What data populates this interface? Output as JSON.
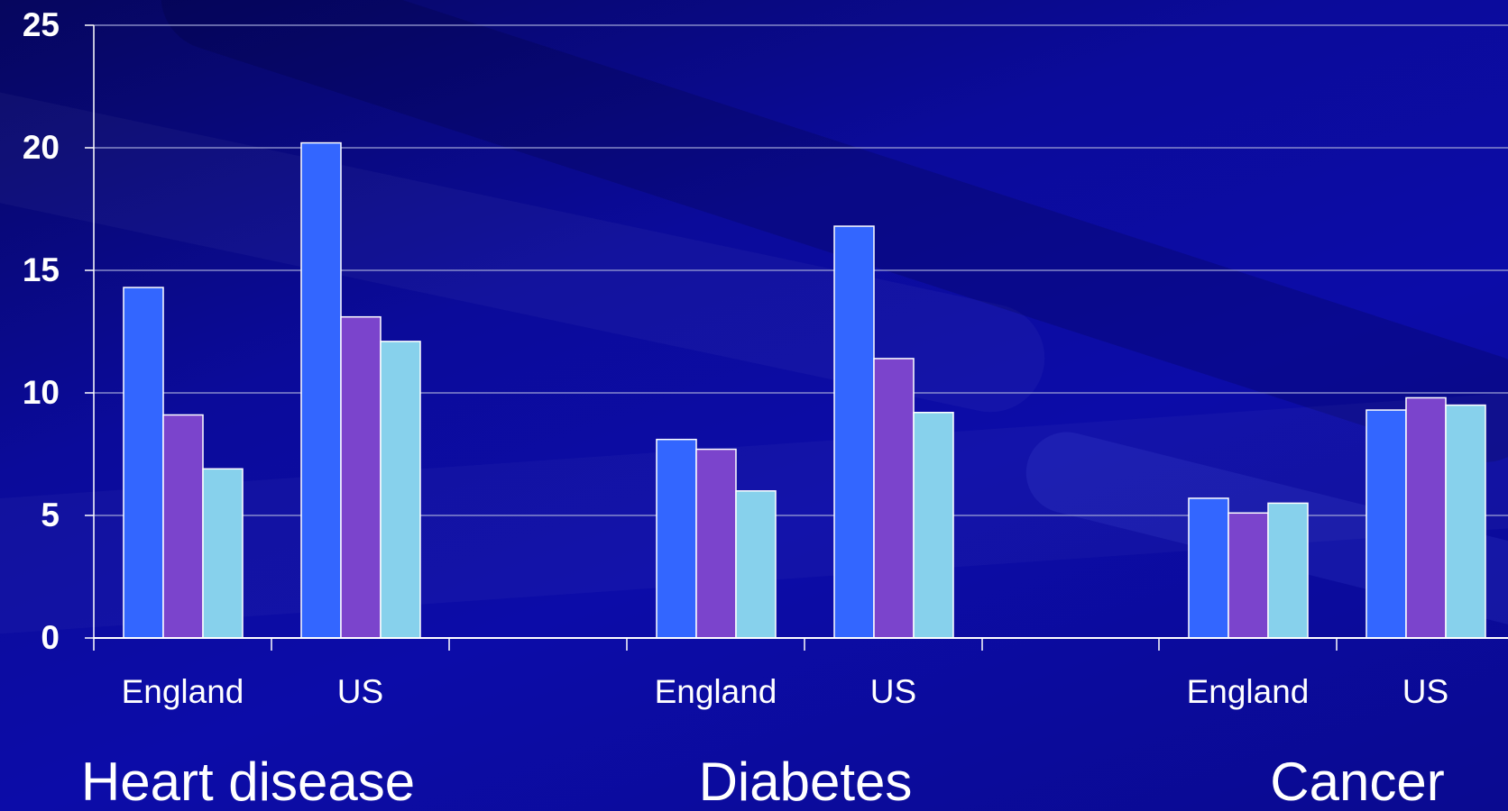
{
  "chart_data": {
    "type": "bar",
    "groups": [
      "Heart disease",
      "Diabetes",
      "Cancer"
    ],
    "categories": [
      "England",
      "US"
    ],
    "series": [
      {
        "values": [
          [
            14.3,
            20.2
          ],
          [
            8.1,
            16.8
          ],
          [
            5.7,
            9.3
          ]
        ],
        "color": "#3366ff"
      },
      {
        "values": [
          [
            9.1,
            13.1
          ],
          [
            7.7,
            11.4
          ],
          [
            5.1,
            9.8
          ]
        ],
        "color": "#7b44cc"
      },
      {
        "values": [
          [
            6.9,
            12.1
          ],
          [
            6.0,
            9.2
          ],
          [
            5.5,
            9.5
          ]
        ],
        "color": "#87d1ec"
      }
    ],
    "yticks": [
      "0",
      "5",
      "10",
      "15",
      "20",
      "25"
    ],
    "ylim": [
      0,
      25
    ],
    "grid": true,
    "title": "",
    "xlabel": "",
    "ylabel": ""
  },
  "colors": {
    "background": "#0a0a8c",
    "gridline": "#9fa3d6",
    "axis": "#ffffff",
    "text": "#ffffff"
  }
}
